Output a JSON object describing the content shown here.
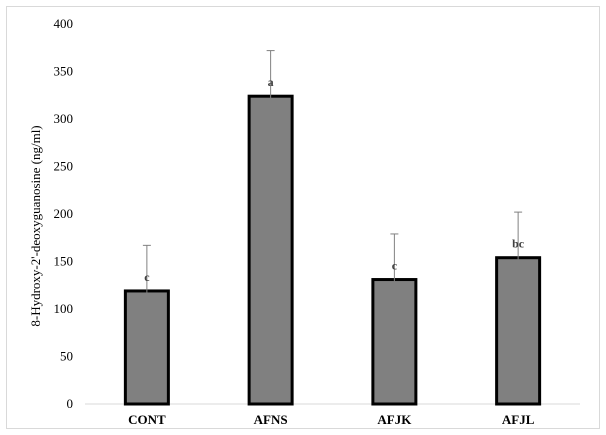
{
  "chart_data": {
    "type": "bar",
    "title": "",
    "xlabel": "",
    "ylabel": "8-Hydroxy-2'-deoxyguanosine (ng/ml)",
    "categories": [
      "CONT",
      "AFNS",
      "AFJK",
      "AFJL"
    ],
    "values": [
      119,
      324,
      131,
      154
    ],
    "errors": [
      48,
      48,
      48,
      48
    ],
    "significance": [
      "c",
      "a",
      "c",
      "bc"
    ],
    "ylim": [
      0,
      400
    ],
    "yticks": [
      0,
      50,
      100,
      150,
      200,
      250,
      300,
      350,
      400
    ],
    "bar_color": "#808080",
    "bar_edge_color": "#000000",
    "error_color": "#808080",
    "grid": false,
    "legend": "none"
  }
}
